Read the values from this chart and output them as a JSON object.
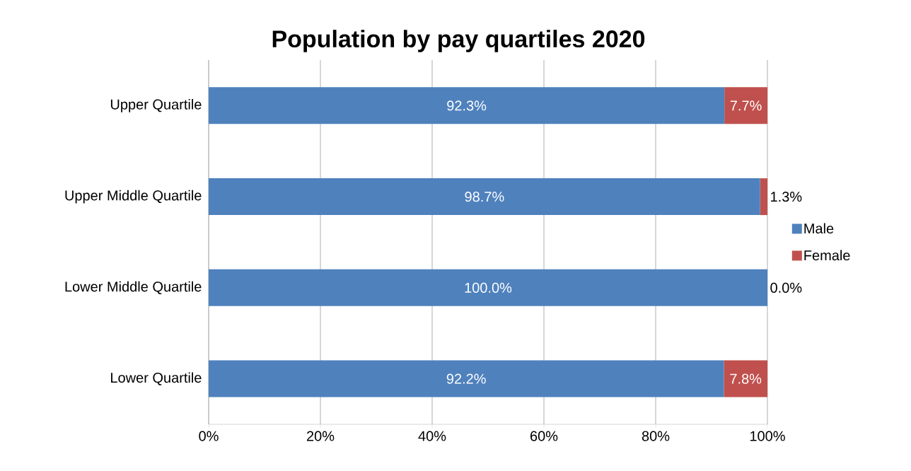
{
  "chart_data": {
    "type": "bar",
    "orientation": "horizontal",
    "stacked": true,
    "title": "Population by pay quartiles 2020",
    "categories": [
      "Upper Quartile",
      "Upper Middle Quartile",
      "Lower Middle Quartile",
      "Lower Quartile"
    ],
    "series": [
      {
        "name": "Male",
        "color": "#4f81bd",
        "values": [
          92.3,
          98.7,
          100.0,
          92.2
        ],
        "value_labels": [
          "92.3%",
          "98.7%",
          "100.0%",
          "92.2%"
        ]
      },
      {
        "name": "Female",
        "color": "#c0504d",
        "values": [
          7.7,
          1.3,
          0.0,
          7.8
        ],
        "value_labels": [
          "7.7%",
          "1.3%",
          "0.0%",
          "7.8%"
        ]
      }
    ],
    "xlim": [
      0,
      100
    ],
    "xticks": [
      {
        "value": 0,
        "label": "0%"
      },
      {
        "value": 20,
        "label": "20%"
      },
      {
        "value": 40,
        "label": "40%"
      },
      {
        "value": 60,
        "label": "60%"
      },
      {
        "value": 80,
        "label": "80%"
      },
      {
        "value": 100,
        "label": "100%"
      }
    ],
    "grid": "x",
    "legend": "right"
  }
}
